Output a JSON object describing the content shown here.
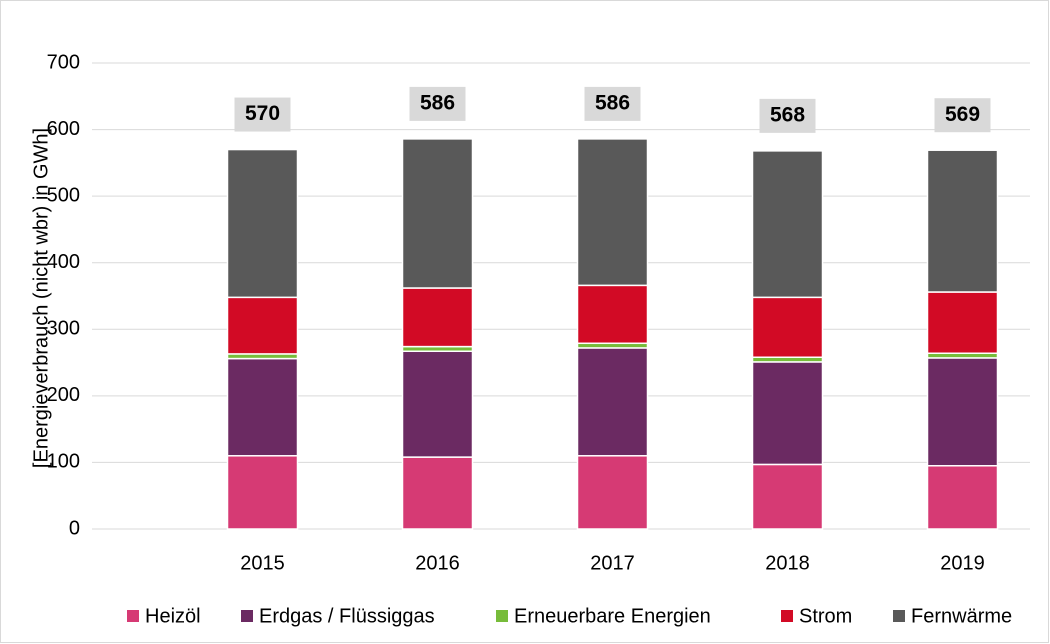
{
  "chart_data": {
    "type": "stacked_bar",
    "y_label": "[Energieverbrauch (nicht wbr) in GWh]",
    "categories": [
      "2015",
      "2016",
      "2017",
      "2018",
      "2019"
    ],
    "series": [
      {
        "name": "Heizöl",
        "color": "#d63a74",
        "values": [
          110,
          108,
          110,
          97,
          95
        ]
      },
      {
        "name": "Erdgas / Flüssiggas",
        "color": "#6b2a62",
        "values": [
          146,
          159,
          162,
          154,
          162
        ]
      },
      {
        "name": "Erneuerbare Energien",
        "color": "#77bc3a",
        "values": [
          7,
          7,
          7,
          7,
          7
        ]
      },
      {
        "name": "Strom",
        "color": "#d20a25",
        "values": [
          85,
          88,
          87,
          90,
          92
        ]
      },
      {
        "name": "Fernwärme",
        "color": "#595959",
        "values": [
          222,
          224,
          220,
          220,
          213
        ]
      }
    ],
    "totals": [
      570,
      586,
      586,
      568,
      569
    ],
    "ylim": [
      0,
      700
    ],
    "yticks": [
      0,
      100,
      200,
      300,
      400,
      500,
      600,
      700
    ],
    "grid": true,
    "legend": "bottom"
  }
}
